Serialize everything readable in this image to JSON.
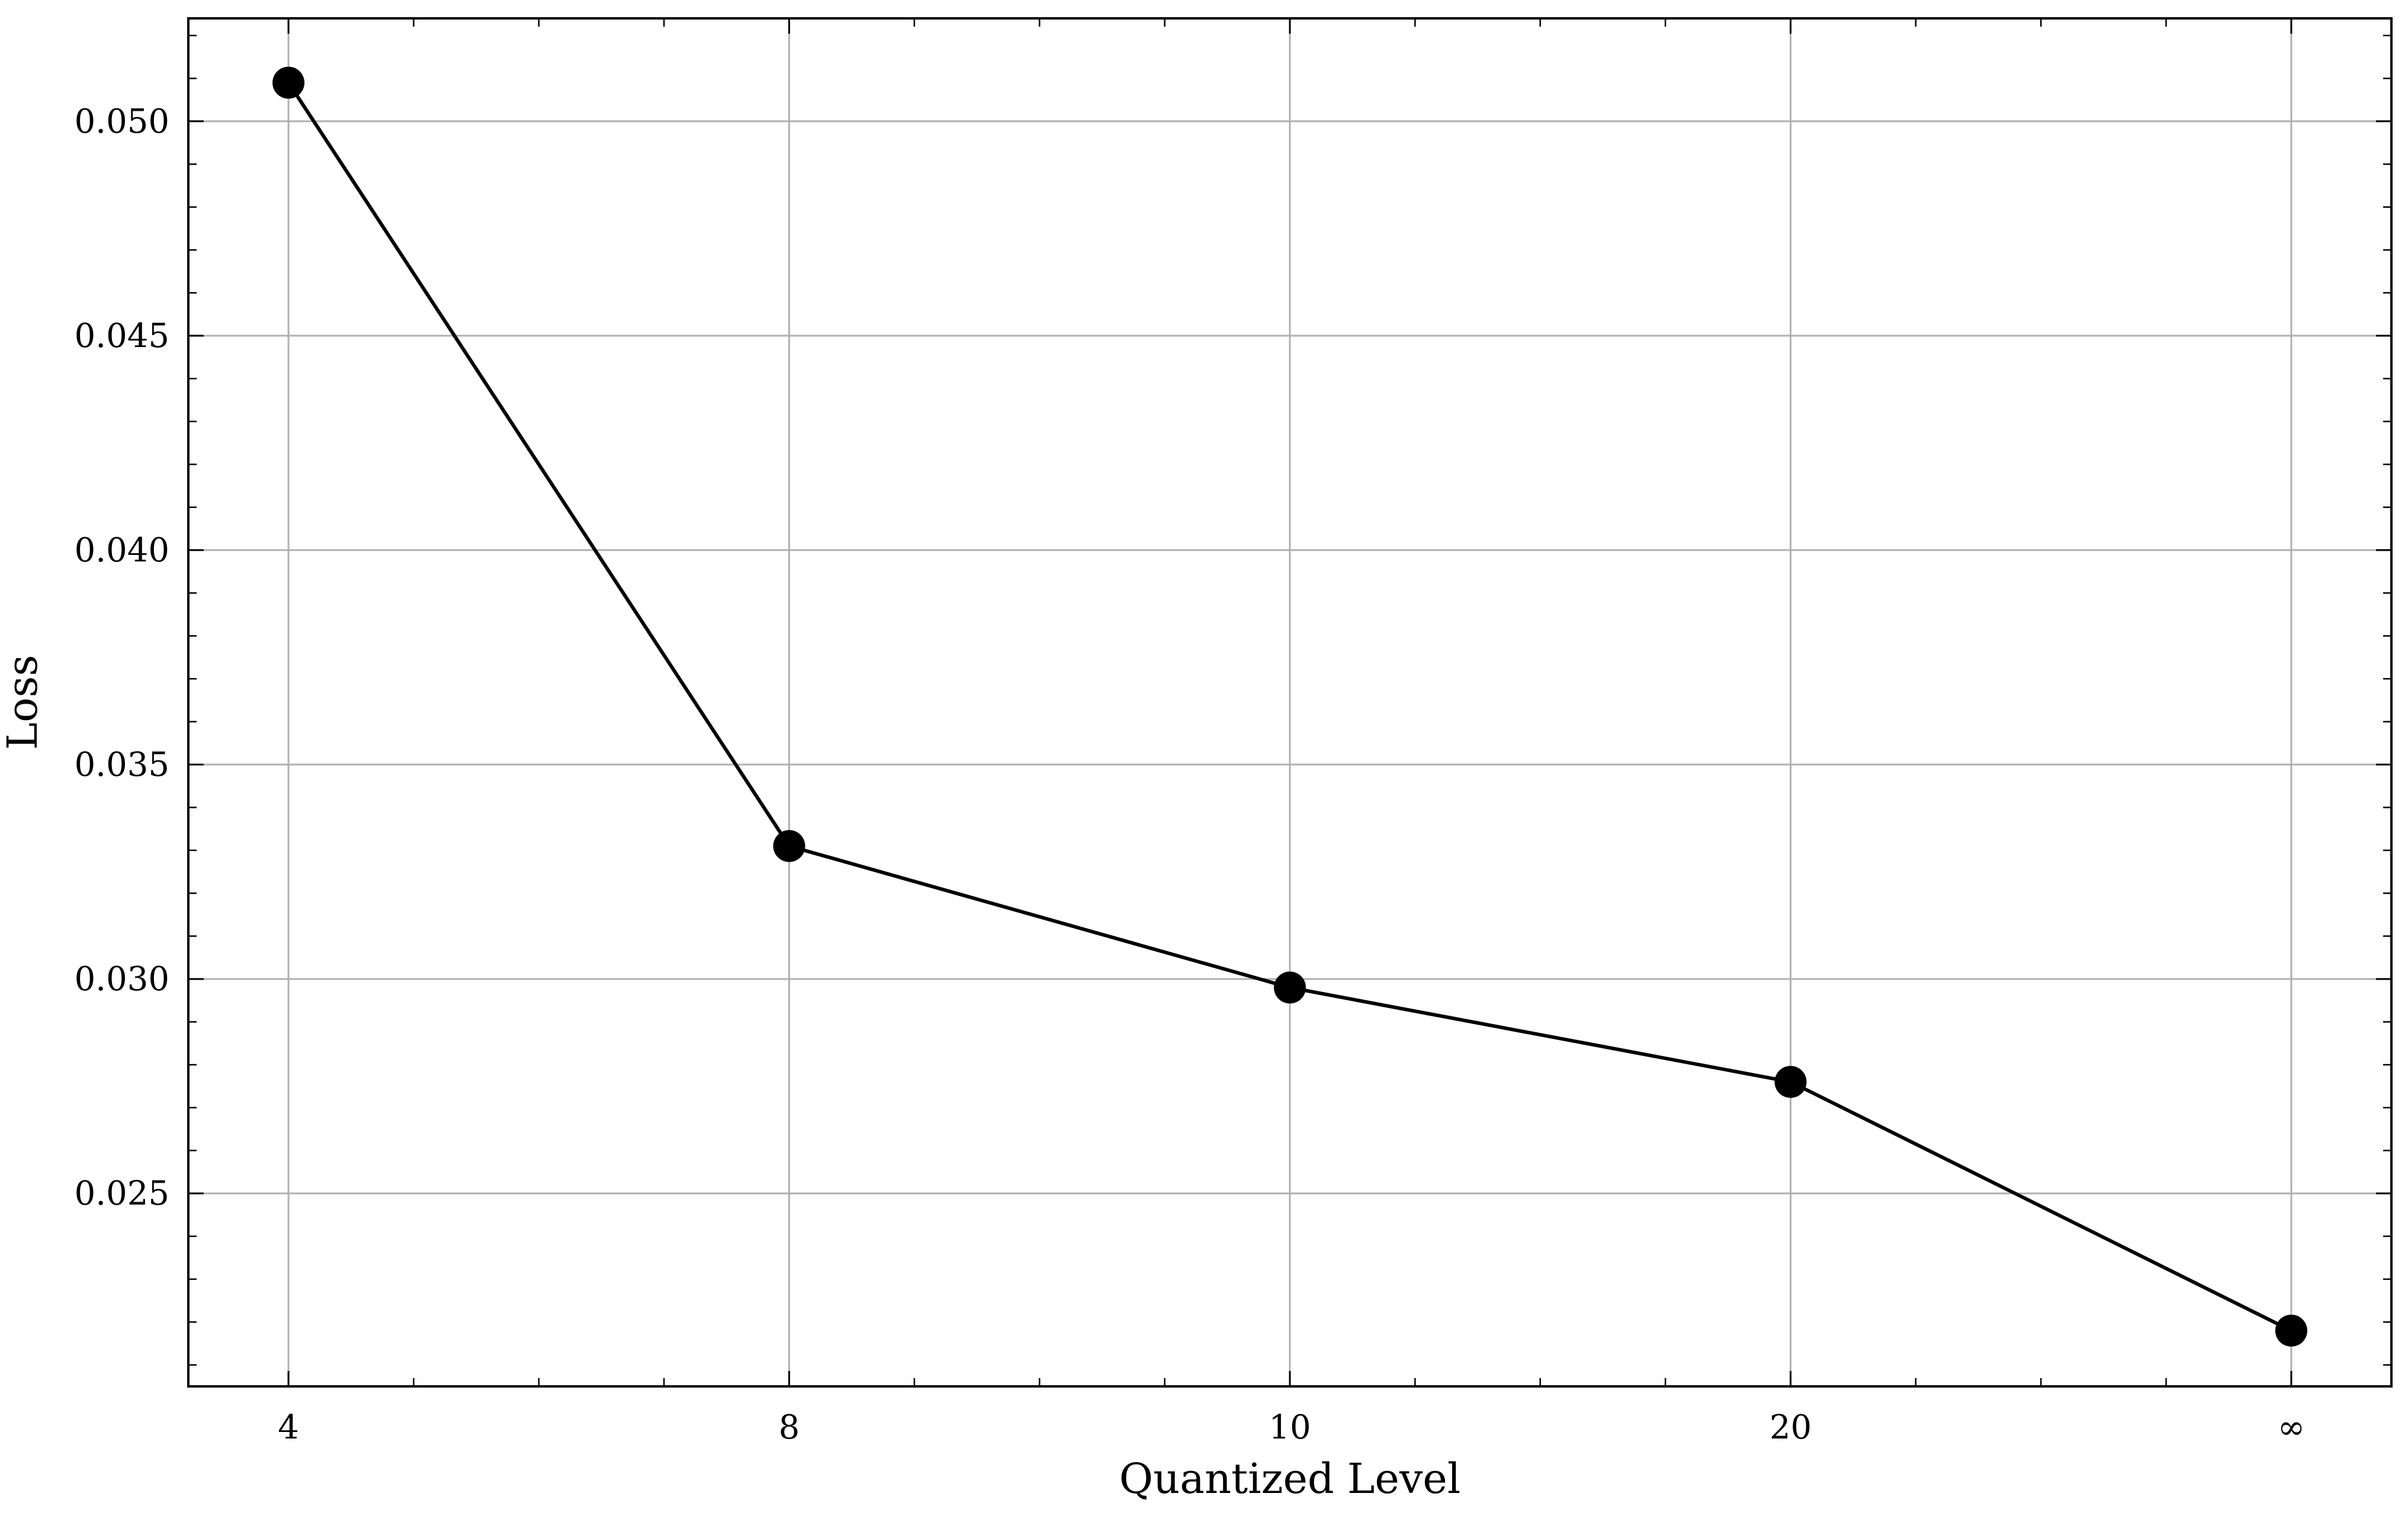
{
  "chart_data": {
    "type": "line",
    "title": "",
    "xlabel": "Quantized Level",
    "ylabel": "Loss",
    "categories": [
      "4",
      "8",
      "10",
      "20",
      "∞"
    ],
    "x_tick_labels": [
      "4",
      "8",
      "10",
      "20",
      "∞"
    ],
    "y_tick_labels": [
      "0.025",
      "0.030",
      "0.035",
      "0.040",
      "0.045",
      "0.050"
    ],
    "y_ticks": [
      0.025,
      0.03,
      0.035,
      0.04,
      0.045,
      0.05
    ],
    "ylim": [
      0.0205,
      0.0524
    ],
    "grid": true,
    "legend": "none",
    "series": [
      {
        "values": [
          0.0509,
          0.0331,
          0.0298,
          0.0276,
          0.0218
        ],
        "color": "#000000",
        "marker": "circle"
      }
    ],
    "colors": {
      "line": "#000000",
      "grid": "#b0b0b0",
      "axes": "#000000"
    }
  }
}
